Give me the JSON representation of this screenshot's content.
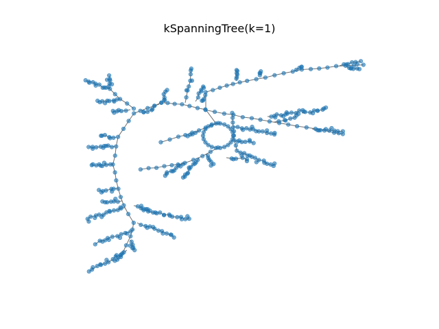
{
  "figure": {
    "title": "kSpanningTree(k=1)"
  },
  "colors": {
    "node_fill": "#1f77b4",
    "edge_stroke": "#555555"
  }
}
